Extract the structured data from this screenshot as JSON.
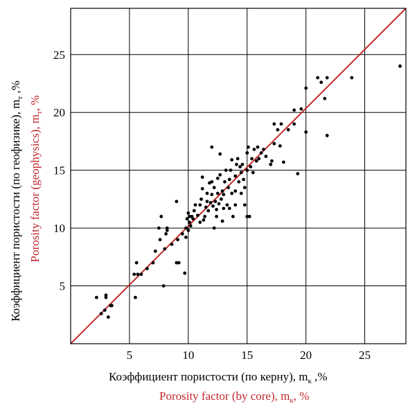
{
  "colors": {
    "accent": "#c1272d",
    "ink": "#000000"
  },
  "labels": {
    "x_ru": "Коэффициент пористости (по керну), m",
    "x_ru_sub": "к",
    "x_ru_unit": " ,%",
    "x_en": "Porosity factor (by core), m",
    "x_en_sub": "к",
    "x_en_unit": ", %",
    "y_ru": "Коэффициент пористости (по геофизике), m",
    "y_ru_sub": "т",
    "y_ru_unit": " ,%",
    "y_en": "Porosity factor (geophysics), m",
    "y_en_sub": "т",
    "y_en_unit": ", %"
  },
  "chart_data": {
    "type": "scatter",
    "title": "",
    "xlim": [
      0,
      28.5
    ],
    "ylim": [
      0,
      29
    ],
    "x_ticks": [
      5,
      10,
      15,
      20,
      25
    ],
    "y_ticks": [
      5,
      10,
      15,
      20,
      25
    ],
    "grid": true,
    "reference_line": {
      "from": [
        0,
        0
      ],
      "to": [
        28.5,
        29
      ]
    },
    "points": [
      [
        2.2,
        4.0
      ],
      [
        2.6,
        2.6
      ],
      [
        2.9,
        2.9
      ],
      [
        3.0,
        4.0
      ],
      [
        3.0,
        4.2
      ],
      [
        3.2,
        2.3
      ],
      [
        3.4,
        3.3
      ],
      [
        3.5,
        3.3
      ],
      [
        5.4,
        6.0
      ],
      [
        5.5,
        4.0
      ],
      [
        5.6,
        7.0
      ],
      [
        5.7,
        6.0
      ],
      [
        6.0,
        6.0
      ],
      [
        6.5,
        6.5
      ],
      [
        7.0,
        7.0
      ],
      [
        7.2,
        8.0
      ],
      [
        7.5,
        10.0
      ],
      [
        7.6,
        9.0
      ],
      [
        7.7,
        11.0
      ],
      [
        7.9,
        5.0
      ],
      [
        8.0,
        8.2
      ],
      [
        8.1,
        9.5
      ],
      [
        8.2,
        10.0
      ],
      [
        8.2,
        9.8
      ],
      [
        8.6,
        8.6
      ],
      [
        9.0,
        7.0
      ],
      [
        9.0,
        12.3
      ],
      [
        9.1,
        9.0
      ],
      [
        9.2,
        7.0
      ],
      [
        9.5,
        9.5
      ],
      [
        9.7,
        6.1
      ],
      [
        9.8,
        10.0
      ],
      [
        9.8,
        9.2
      ],
      [
        9.9,
        10.8
      ],
      [
        10.0,
        9.8
      ],
      [
        10.0,
        11.3
      ],
      [
        10.1,
        10.5
      ],
      [
        10.1,
        11.0
      ],
      [
        10.2,
        10.2
      ],
      [
        10.3,
        11.0
      ],
      [
        10.4,
        10.8
      ],
      [
        10.5,
        11.5
      ],
      [
        10.6,
        12.0
      ],
      [
        10.8,
        11.1
      ],
      [
        11.0,
        10.5
      ],
      [
        11.0,
        12.0
      ],
      [
        11.1,
        12.5
      ],
      [
        11.2,
        13.4
      ],
      [
        11.2,
        14.4
      ],
      [
        11.3,
        10.7
      ],
      [
        11.4,
        11.0
      ],
      [
        11.5,
        11.8
      ],
      [
        11.6,
        12.3
      ],
      [
        11.6,
        13.0
      ],
      [
        11.7,
        11.5
      ],
      [
        11.9,
        12.2
      ],
      [
        12.0,
        12.9
      ],
      [
        12.0,
        14.0
      ],
      [
        12.0,
        17.0
      ],
      [
        12.1,
        11.9
      ],
      [
        12.2,
        10.0
      ],
      [
        12.2,
        13.5
      ],
      [
        12.3,
        12.3
      ],
      [
        12.4,
        11.6
      ],
      [
        12.4,
        11.0
      ],
      [
        12.5,
        13.0
      ],
      [
        12.6,
        12.1
      ],
      [
        12.7,
        14.6
      ],
      [
        12.7,
        16.4
      ],
      [
        12.8,
        12.5
      ],
      [
        12.9,
        13.2
      ],
      [
        13.0,
        11.7
      ],
      [
        13.0,
        12.9
      ],
      [
        13.1,
        14.0
      ],
      [
        13.2,
        15.0
      ],
      [
        13.3,
        12.0
      ],
      [
        13.4,
        13.5
      ],
      [
        13.5,
        11.7
      ],
      [
        13.5,
        14.2
      ],
      [
        13.6,
        15.0
      ],
      [
        13.7,
        13.0
      ],
      [
        13.8,
        11.0
      ],
      [
        14.0,
        12.0
      ],
      [
        14.0,
        14.5
      ],
      [
        14.0,
        13.2
      ],
      [
        14.1,
        15.5
      ],
      [
        14.2,
        16.0
      ],
      [
        14.3,
        14.0
      ],
      [
        14.4,
        15.3
      ],
      [
        14.5,
        13.0
      ],
      [
        14.5,
        14.8
      ],
      [
        14.6,
        15.5
      ],
      [
        14.7,
        14.2
      ],
      [
        14.8,
        12.0
      ],
      [
        14.8,
        13.5
      ],
      [
        15.0,
        15.0
      ],
      [
        15.0,
        11.0
      ],
      [
        15.0,
        16.5
      ],
      [
        15.1,
        17.0
      ],
      [
        15.2,
        11.0
      ],
      [
        15.3,
        15.3
      ],
      [
        15.4,
        16.0
      ],
      [
        15.5,
        14.8
      ],
      [
        15.6,
        16.8
      ],
      [
        15.8,
        15.8
      ],
      [
        15.9,
        17.0
      ],
      [
        16.0,
        16.0
      ],
      [
        16.2,
        16.5
      ],
      [
        16.4,
        16.8
      ],
      [
        16.6,
        16.2
      ],
      [
        17.0,
        15.5
      ],
      [
        17.1,
        15.8
      ],
      [
        17.3,
        17.3
      ],
      [
        17.3,
        19.0
      ],
      [
        17.6,
        18.5
      ],
      [
        17.8,
        17.1
      ],
      [
        17.9,
        19.0
      ],
      [
        18.1,
        15.7
      ],
      [
        18.5,
        18.5
      ],
      [
        19.0,
        19.0
      ],
      [
        19.0,
        20.2
      ],
      [
        19.3,
        14.7
      ],
      [
        19.6,
        20.3
      ],
      [
        20.0,
        18.3
      ],
      [
        20.0,
        22.1
      ],
      [
        21.0,
        23.0
      ],
      [
        21.3,
        22.6
      ],
      [
        21.6,
        21.2
      ],
      [
        21.8,
        18.0
      ],
      [
        21.8,
        23.0
      ],
      [
        23.9,
        23.0
      ],
      [
        28.0,
        24.0
      ],
      [
        11.8,
        13.9
      ],
      [
        13.7,
        15.9
      ],
      [
        12.5,
        14.3
      ],
      [
        12.9,
        10.6
      ]
    ]
  }
}
